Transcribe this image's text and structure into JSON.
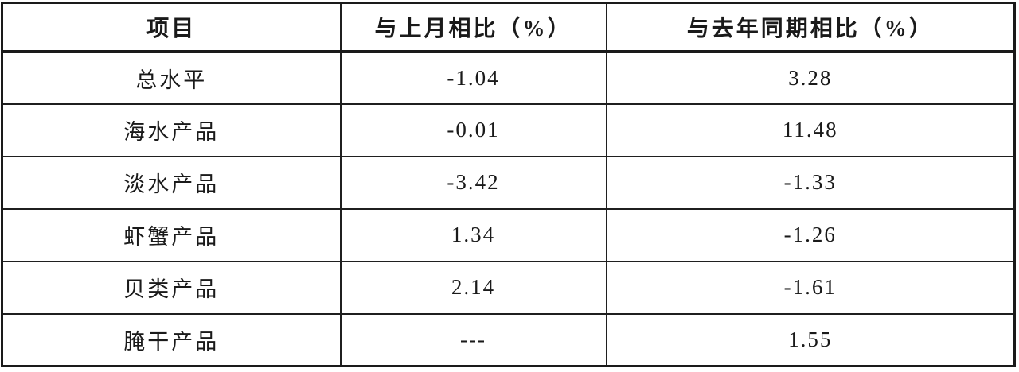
{
  "chart_data": {
    "type": "table",
    "columns": [
      "项目",
      "与上月相比（%）",
      "与去年同期相比（%）"
    ],
    "rows": [
      [
        "总水平",
        "-1.04",
        "3.28"
      ],
      [
        "海水产品",
        "-0.01",
        "11.48"
      ],
      [
        "淡水产品",
        "-3.42",
        "-1.33"
      ],
      [
        "虾蟹产品",
        "1.34",
        "-1.26"
      ],
      [
        "贝类产品",
        "2.14",
        "-1.61"
      ],
      [
        "腌干产品",
        "---",
        "1.55"
      ]
    ],
    "layout_hints": {
      "grid": "on",
      "header_bold": true,
      "all_cells_centered": true
    },
    "colors": {
      "border": "#1f1f1f",
      "text": "#1a1a1a",
      "background": "#ffffff"
    }
  }
}
